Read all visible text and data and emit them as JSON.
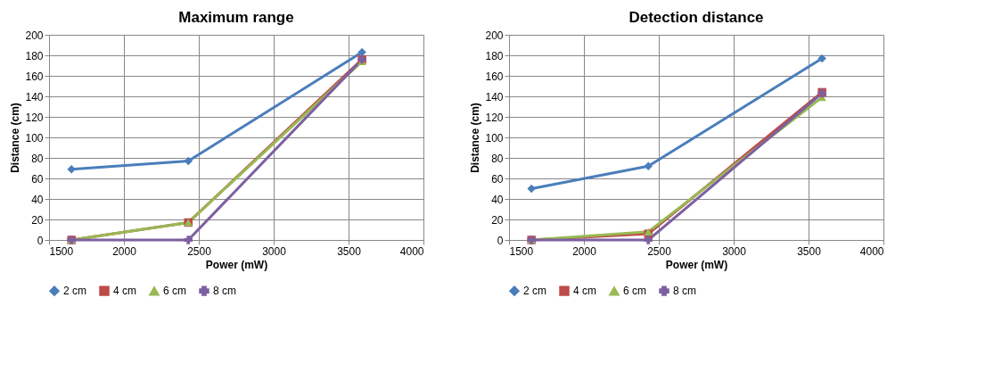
{
  "chart_data": [
    {
      "type": "line",
      "title": "Maximum range",
      "xlabel": "Power (mW)",
      "ylabel": "Distance  (cm)",
      "x": [
        1650,
        2430,
        3590
      ],
      "xlim": [
        1500,
        4000
      ],
      "xticks": [
        1500,
        2000,
        2500,
        3000,
        3500,
        4000
      ],
      "ylim": [
        0,
        200
      ],
      "yticks": [
        0,
        20,
        40,
        60,
        80,
        100,
        120,
        140,
        160,
        180,
        200
      ],
      "grid": true,
      "legend": "bottom",
      "line_style": "solid",
      "series": [
        {
          "name": "2 cm",
          "color": "#4a7ebb",
          "marker": "diamond",
          "values": [
            69,
            77,
            183
          ]
        },
        {
          "name": "4 cm",
          "color": "#be4b48",
          "marker": "square",
          "values": [
            0,
            17,
            176
          ]
        },
        {
          "name": "6 cm",
          "color": "#98b954",
          "marker": "triangle",
          "values": [
            0,
            17,
            174
          ]
        },
        {
          "name": "8 cm",
          "color": "#7d60a0",
          "marker": "cross",
          "values": [
            0,
            0,
            176
          ]
        }
      ]
    },
    {
      "type": "line",
      "title": "Detection distance",
      "xlabel": "Power (mW)",
      "ylabel": "Distance  (cm)",
      "x": [
        1650,
        2430,
        3590
      ],
      "xlim": [
        1500,
        4000
      ],
      "xticks": [
        1500,
        2000,
        2500,
        3000,
        3500,
        4000
      ],
      "ylim": [
        0,
        200
      ],
      "yticks": [
        0,
        20,
        40,
        60,
        80,
        100,
        120,
        140,
        160,
        180,
        200
      ],
      "grid": true,
      "legend": "bottom",
      "line_style": "solid",
      "series": [
        {
          "name": "2 cm",
          "color": "#4a7ebb",
          "marker": "diamond",
          "values": [
            50,
            72,
            177
          ]
        },
        {
          "name": "4 cm",
          "color": "#be4b48",
          "marker": "square",
          "values": [
            0,
            6,
            144
          ]
        },
        {
          "name": "6 cm",
          "color": "#98b954",
          "marker": "triangle",
          "values": [
            0,
            8,
            139
          ]
        },
        {
          "name": "8 cm",
          "color": "#7d60a0",
          "marker": "cross",
          "values": [
            0,
            0,
            143
          ]
        }
      ]
    }
  ]
}
